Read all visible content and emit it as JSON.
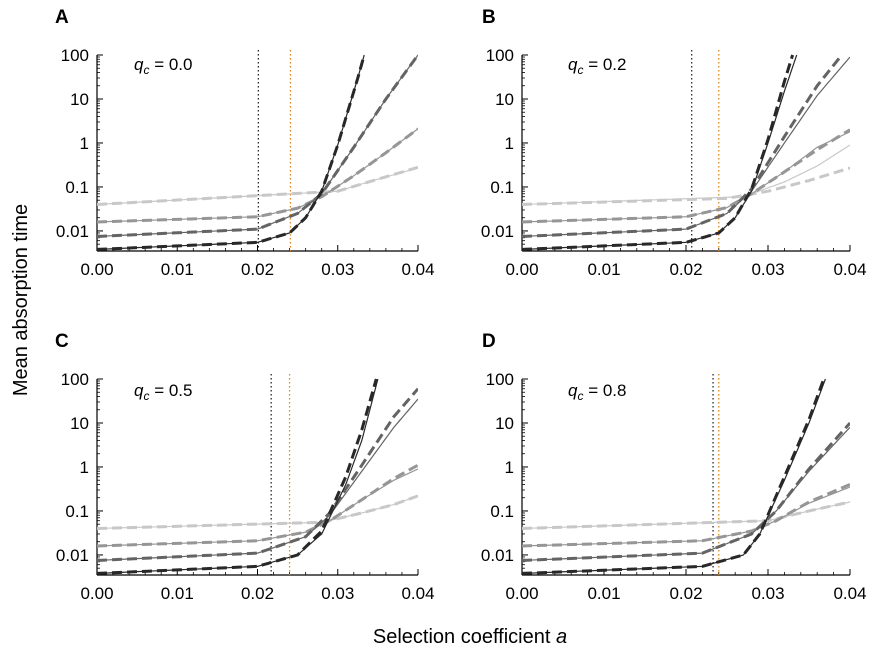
{
  "figure": {
    "ylabel": "Mean absorption time",
    "xlabel": "Selection coefficient",
    "xlabel_symbol": "a",
    "param_symbol": "q",
    "param_subscript": "c",
    "param_equals": " = "
  },
  "colors": {
    "series": [
      "#c8c8c8",
      "#969696",
      "#646464",
      "#282828"
    ],
    "threshold_black": "#000000",
    "threshold_orange": "#d98a2b",
    "axis": "#000000"
  },
  "chart_data": [
    {
      "type": "line",
      "panel": "A",
      "param_value": "0.0",
      "yscale": "log",
      "xlim": [
        0.0,
        0.04
      ],
      "ylim": [
        0.0035,
        100
      ],
      "x_ticks": [
        "0.00",
        "0.01",
        "0.02",
        "0.03",
        "0.04"
      ],
      "y_ticks": [
        "0.01",
        "0.1",
        "1",
        "10",
        "100"
      ],
      "thresholds": {
        "black": 0.0201,
        "orange": 0.0241
      },
      "series": [
        {
          "name": "light",
          "y_at_0": 0.04,
          "analytic": [
            [
              0.0,
              0.04
            ],
            [
              0.03,
              0.08
            ],
            [
              0.035,
              0.15
            ],
            [
              0.04,
              0.27
            ]
          ],
          "simulated": [
            [
              0.0,
              0.04
            ],
            [
              0.03,
              0.08
            ],
            [
              0.035,
              0.15
            ],
            [
              0.04,
              0.28
            ]
          ]
        },
        {
          "name": "medium",
          "y_at_0": 0.016,
          "analytic": [
            [
              0.0,
              0.016
            ],
            [
              0.02,
              0.021
            ],
            [
              0.025,
              0.033
            ],
            [
              0.028,
              0.06
            ],
            [
              0.032,
              0.18
            ],
            [
              0.036,
              0.6
            ],
            [
              0.04,
              2.1
            ]
          ],
          "simulated": [
            [
              0.0,
              0.016
            ],
            [
              0.02,
              0.021
            ],
            [
              0.025,
              0.033
            ],
            [
              0.028,
              0.06
            ],
            [
              0.032,
              0.18
            ],
            [
              0.036,
              0.6
            ],
            [
              0.04,
              2.1
            ]
          ]
        },
        {
          "name": "dark",
          "y_at_0": 0.0075,
          "analytic": [
            [
              0.0,
              0.0075
            ],
            [
              0.02,
              0.011
            ],
            [
              0.025,
              0.025
            ],
            [
              0.028,
              0.07
            ],
            [
              0.032,
              0.8
            ],
            [
              0.036,
              10
            ],
            [
              0.04,
              100
            ]
          ],
          "simulated": [
            [
              0.0,
              0.0075
            ],
            [
              0.02,
              0.011
            ],
            [
              0.025,
              0.025
            ],
            [
              0.028,
              0.07
            ],
            [
              0.032,
              0.8
            ],
            [
              0.036,
              10
            ],
            [
              0.04,
              100
            ]
          ]
        },
        {
          "name": "darkest",
          "y_at_0": 0.0038,
          "analytic": [
            [
              0.0,
              0.0038
            ],
            [
              0.02,
              0.0055
            ],
            [
              0.024,
              0.009
            ],
            [
              0.026,
              0.02
            ],
            [
              0.028,
              0.08
            ],
            [
              0.03,
              0.9
            ],
            [
              0.0325,
              30
            ],
            [
              0.0333,
              100
            ]
          ],
          "simulated": [
            [
              0.0,
              0.0038
            ],
            [
              0.02,
              0.0055
            ],
            [
              0.024,
              0.009
            ],
            [
              0.026,
              0.02
            ],
            [
              0.028,
              0.08
            ],
            [
              0.03,
              0.9
            ],
            [
              0.0325,
              30
            ],
            [
              0.0333,
              100
            ]
          ]
        }
      ]
    },
    {
      "type": "line",
      "panel": "B",
      "param_value": "0.2",
      "yscale": "log",
      "xlim": [
        0.0,
        0.04
      ],
      "ylim": [
        0.0035,
        100
      ],
      "x_ticks": [
        "0.00",
        "0.01",
        "0.02",
        "0.03",
        "0.04"
      ],
      "y_ticks": [
        "0.01",
        "0.1",
        "1",
        "10",
        "100"
      ],
      "thresholds": {
        "black": 0.0207,
        "orange": 0.024
      },
      "series": [
        {
          "name": "light",
          "y_at_0": 0.04,
          "analytic": [
            [
              0.0,
              0.04
            ],
            [
              0.027,
              0.06
            ],
            [
              0.032,
              0.13
            ],
            [
              0.036,
              0.3
            ],
            [
              0.04,
              0.9
            ]
          ],
          "simulated": [
            [
              0.0,
              0.04
            ],
            [
              0.025,
              0.055
            ],
            [
              0.03,
              0.08
            ],
            [
              0.035,
              0.14
            ],
            [
              0.04,
              0.27
            ]
          ]
        },
        {
          "name": "medium",
          "y_at_0": 0.016,
          "analytic": [
            [
              0.0,
              0.016
            ],
            [
              0.02,
              0.021
            ],
            [
              0.025,
              0.034
            ],
            [
              0.028,
              0.07
            ],
            [
              0.032,
              0.22
            ],
            [
              0.036,
              0.8
            ],
            [
              0.04,
              1.8
            ]
          ],
          "simulated": [
            [
              0.0,
              0.016
            ],
            [
              0.02,
              0.021
            ],
            [
              0.025,
              0.034
            ],
            [
              0.028,
              0.07
            ],
            [
              0.032,
              0.22
            ],
            [
              0.036,
              0.7
            ],
            [
              0.04,
              2.0
            ]
          ]
        },
        {
          "name": "dark",
          "y_at_0": 0.0075,
          "analytic": [
            [
              0.0,
              0.0075
            ],
            [
              0.02,
              0.011
            ],
            [
              0.025,
              0.025
            ],
            [
              0.028,
              0.08
            ],
            [
              0.032,
              1.0
            ],
            [
              0.036,
              12
            ],
            [
              0.04,
              90
            ]
          ],
          "simulated": [
            [
              0.0,
              0.0075
            ],
            [
              0.02,
              0.011
            ],
            [
              0.025,
              0.025
            ],
            [
              0.028,
              0.09
            ],
            [
              0.032,
              1.4
            ],
            [
              0.036,
              20
            ],
            [
              0.039,
              100
            ]
          ]
        },
        {
          "name": "darkest",
          "y_at_0": 0.0038,
          "analytic": [
            [
              0.0,
              0.0038
            ],
            [
              0.02,
              0.0055
            ],
            [
              0.024,
              0.009
            ],
            [
              0.026,
              0.02
            ],
            [
              0.028,
              0.08
            ],
            [
              0.03,
              1.0
            ],
            [
              0.032,
              15
            ],
            [
              0.0335,
              100
            ]
          ],
          "simulated": [
            [
              0.0,
              0.0038
            ],
            [
              0.02,
              0.0055
            ],
            [
              0.024,
              0.009
            ],
            [
              0.026,
              0.02
            ],
            [
              0.028,
              0.09
            ],
            [
              0.03,
              1.2
            ],
            [
              0.032,
              25
            ],
            [
              0.033,
              100
            ]
          ]
        }
      ]
    },
    {
      "type": "line",
      "panel": "C",
      "param_value": "0.5",
      "yscale": "log",
      "xlim": [
        0.0,
        0.04
      ],
      "ylim": [
        0.0035,
        100
      ],
      "x_ticks": [
        "0.00",
        "0.01",
        "0.02",
        "0.03",
        "0.04"
      ],
      "y_ticks": [
        "0.01",
        "0.1",
        "1",
        "10",
        "100"
      ],
      "thresholds": {
        "black": 0.0217,
        "orange": 0.024
      },
      "series": [
        {
          "name": "light",
          "y_at_0": 0.04,
          "analytic": [
            [
              0.0,
              0.04
            ],
            [
              0.028,
              0.055
            ],
            [
              0.033,
              0.09
            ],
            [
              0.037,
              0.14
            ],
            [
              0.04,
              0.22
            ]
          ],
          "simulated": [
            [
              0.0,
              0.04
            ],
            [
              0.028,
              0.055
            ],
            [
              0.033,
              0.09
            ],
            [
              0.037,
              0.14
            ],
            [
              0.04,
              0.22
            ]
          ]
        },
        {
          "name": "medium",
          "y_at_0": 0.016,
          "analytic": [
            [
              0.0,
              0.016
            ],
            [
              0.02,
              0.021
            ],
            [
              0.026,
              0.033
            ],
            [
              0.029,
              0.06
            ],
            [
              0.033,
              0.18
            ],
            [
              0.037,
              0.5
            ],
            [
              0.04,
              0.9
            ]
          ],
          "simulated": [
            [
              0.0,
              0.016
            ],
            [
              0.02,
              0.021
            ],
            [
              0.026,
              0.033
            ],
            [
              0.029,
              0.06
            ],
            [
              0.033,
              0.18
            ],
            [
              0.037,
              0.55
            ],
            [
              0.04,
              1.1
            ]
          ]
        },
        {
          "name": "dark",
          "y_at_0": 0.0075,
          "analytic": [
            [
              0.0,
              0.0075
            ],
            [
              0.02,
              0.011
            ],
            [
              0.026,
              0.026
            ],
            [
              0.029,
              0.08
            ],
            [
              0.033,
              0.8
            ],
            [
              0.037,
              8
            ],
            [
              0.04,
              35
            ]
          ],
          "simulated": [
            [
              0.0,
              0.0075
            ],
            [
              0.02,
              0.011
            ],
            [
              0.026,
              0.026
            ],
            [
              0.029,
              0.09
            ],
            [
              0.033,
              1.1
            ],
            [
              0.037,
              14
            ],
            [
              0.04,
              60
            ]
          ]
        },
        {
          "name": "darkest",
          "y_at_0": 0.0038,
          "analytic": [
            [
              0.0,
              0.0038
            ],
            [
              0.02,
              0.0055
            ],
            [
              0.025,
              0.01
            ],
            [
              0.028,
              0.03
            ],
            [
              0.031,
              0.4
            ],
            [
              0.033,
              4
            ],
            [
              0.035,
              100
            ]
          ],
          "simulated": [
            [
              0.0,
              0.0038
            ],
            [
              0.02,
              0.0055
            ],
            [
              0.025,
              0.01
            ],
            [
              0.028,
              0.035
            ],
            [
              0.031,
              0.6
            ],
            [
              0.033,
              7
            ],
            [
              0.0348,
              100
            ]
          ]
        }
      ]
    },
    {
      "type": "line",
      "panel": "D",
      "param_value": "0.8",
      "yscale": "log",
      "xlim": [
        0.0,
        0.04
      ],
      "ylim": [
        0.0035,
        100
      ],
      "x_ticks": [
        "0.00",
        "0.01",
        "0.02",
        "0.03",
        "0.04"
      ],
      "y_ticks": [
        "0.01",
        "0.1",
        "1",
        "10",
        "100"
      ],
      "thresholds": {
        "black": 0.0233,
        "orange": 0.024
      },
      "series": [
        {
          "name": "light",
          "y_at_0": 0.04,
          "analytic": [
            [
              0.0,
              0.04
            ],
            [
              0.03,
              0.06
            ],
            [
              0.035,
              0.1
            ],
            [
              0.04,
              0.16
            ]
          ],
          "simulated": [
            [
              0.0,
              0.04
            ],
            [
              0.03,
              0.06
            ],
            [
              0.035,
              0.1
            ],
            [
              0.04,
              0.16
            ]
          ]
        },
        {
          "name": "medium",
          "y_at_0": 0.016,
          "analytic": [
            [
              0.0,
              0.016
            ],
            [
              0.022,
              0.021
            ],
            [
              0.028,
              0.035
            ],
            [
              0.031,
              0.06
            ],
            [
              0.035,
              0.15
            ],
            [
              0.04,
              0.35
            ]
          ],
          "simulated": [
            [
              0.0,
              0.016
            ],
            [
              0.022,
              0.021
            ],
            [
              0.028,
              0.035
            ],
            [
              0.031,
              0.06
            ],
            [
              0.035,
              0.16
            ],
            [
              0.04,
              0.4
            ]
          ]
        },
        {
          "name": "dark",
          "y_at_0": 0.0075,
          "analytic": [
            [
              0.0,
              0.0075
            ],
            [
              0.022,
              0.011
            ],
            [
              0.028,
              0.03
            ],
            [
              0.031,
              0.1
            ],
            [
              0.035,
              0.8
            ],
            [
              0.04,
              8
            ]
          ],
          "simulated": [
            [
              0.0,
              0.0075
            ],
            [
              0.022,
              0.011
            ],
            [
              0.028,
              0.03
            ],
            [
              0.031,
              0.1
            ],
            [
              0.035,
              0.9
            ],
            [
              0.04,
              10
            ]
          ]
        },
        {
          "name": "darkest",
          "y_at_0": 0.0038,
          "analytic": [
            [
              0.0,
              0.0038
            ],
            [
              0.022,
              0.0055
            ],
            [
              0.027,
              0.01
            ],
            [
              0.029,
              0.03
            ],
            [
              0.032,
              0.5
            ],
            [
              0.035,
              10
            ],
            [
              0.037,
              100
            ]
          ],
          "simulated": [
            [
              0.0,
              0.0038
            ],
            [
              0.022,
              0.0055
            ],
            [
              0.027,
              0.01
            ],
            [
              0.029,
              0.03
            ],
            [
              0.032,
              0.6
            ],
            [
              0.035,
              12
            ],
            [
              0.0368,
              100
            ]
          ]
        }
      ]
    }
  ]
}
